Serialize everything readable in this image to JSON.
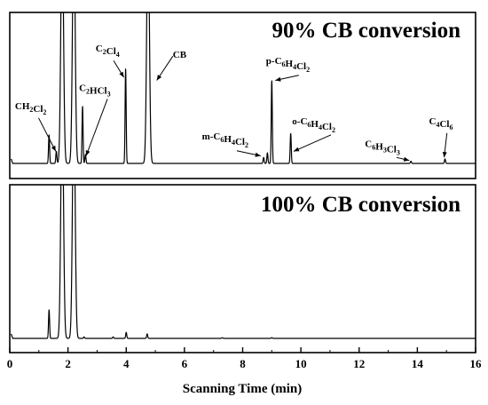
{
  "chart_data": {
    "type": "line",
    "xlabel": "Scanning Time (min)",
    "xlim": [
      0,
      16
    ],
    "xticks": [
      0,
      2,
      4,
      6,
      8,
      10,
      12,
      14,
      16
    ],
    "grid": false,
    "legend": "none",
    "panels": [
      {
        "title": "90% CB conversion",
        "peaks": [
          {
            "t": 1.35,
            "h": 0.19
          },
          {
            "t": 1.6,
            "h": 0.08
          },
          {
            "t": 1.8,
            "h": 1.6
          },
          {
            "t": 2.2,
            "h": 1.6
          },
          {
            "t": 2.5,
            "h": 0.38
          },
          {
            "t": 2.6,
            "h": 0.06
          },
          {
            "t": 3.98,
            "h": 0.63
          },
          {
            "t": 4.75,
            "h": 1.6
          },
          {
            "t": 8.72,
            "h": 0.04
          },
          {
            "t": 8.85,
            "h": 0.07
          },
          {
            "t": 9.0,
            "h": 0.55
          },
          {
            "t": 9.65,
            "h": 0.2
          },
          {
            "t": 13.78,
            "h": 0.015
          },
          {
            "t": 14.95,
            "h": 0.03
          }
        ],
        "labels": [
          {
            "text": "CH2Cl2",
            "label_t": 0.18,
            "label_y": 0.36,
            "arrow_to_t": 1.58,
            "arrow_to_y": 0.08
          },
          {
            "text": "C2HCl3",
            "label_t": 2.38,
            "label_y": 0.48,
            "arrow_to_t": 2.62,
            "arrow_to_y": 0.05
          },
          {
            "text": "C2Cl4",
            "label_t": 2.95,
            "label_y": 0.74,
            "arrow_to_t": 3.92,
            "arrow_to_y": 0.57
          },
          {
            "text": "CB",
            "label_t": 5.6,
            "label_y": 0.7,
            "arrow_to_t": 5.05,
            "arrow_to_y": 0.55
          },
          {
            "text": "m-C6H4Cl2",
            "label_t": 6.6,
            "label_y": 0.16,
            "arrow_to_t": 8.62,
            "arrow_to_y": 0.05
          },
          {
            "text": "p-C6H4Cl2",
            "label_t": 8.8,
            "label_y": 0.66,
            "arrow_to_t": 9.12,
            "arrow_to_y": 0.55
          },
          {
            "text": "o-C6H4Cl2",
            "label_t": 9.7,
            "label_y": 0.26,
            "arrow_to_t": 9.75,
            "arrow_to_y": 0.08
          },
          {
            "text": "C6H3Cl3",
            "label_t": 12.2,
            "label_y": 0.11,
            "arrow_to_t": 13.72,
            "arrow_to_y": 0.02
          },
          {
            "text": "C4Cl6",
            "label_t": 14.4,
            "label_y": 0.26,
            "arrow_to_t": 14.92,
            "arrow_to_y": 0.04
          }
        ]
      },
      {
        "title": "100% CB conversion",
        "peaks": [
          {
            "t": 1.35,
            "h": 0.19
          },
          {
            "t": 1.8,
            "h": 1.6
          },
          {
            "t": 2.2,
            "h": 1.6
          },
          {
            "t": 2.55,
            "h": 0.01
          },
          {
            "t": 3.55,
            "h": 0.01
          },
          {
            "t": 4.0,
            "h": 0.04
          },
          {
            "t": 4.72,
            "h": 0.03
          },
          {
            "t": 7.3,
            "h": 0.005
          },
          {
            "t": 9.0,
            "h": 0.005
          }
        ],
        "labels": []
      }
    ]
  }
}
